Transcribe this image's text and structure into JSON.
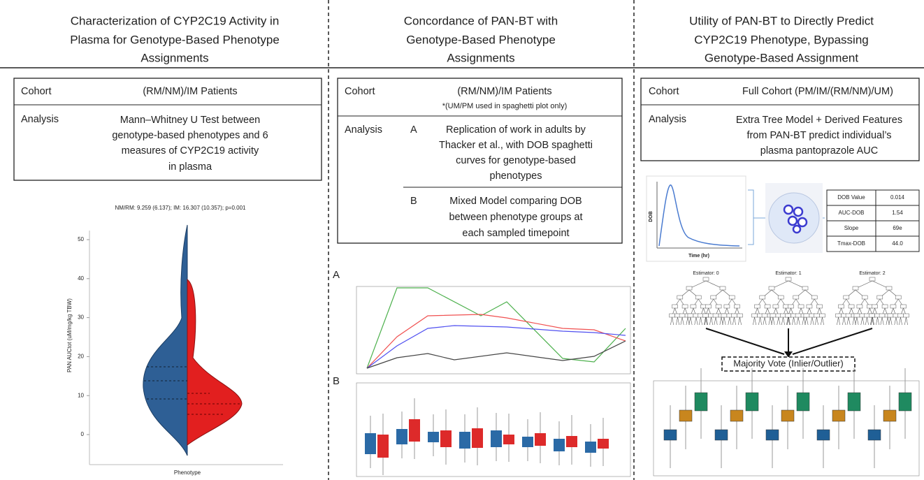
{
  "panel1": {
    "title": [
      "Characterization of CYP2C19 Activity in",
      "Plasma for Genotype-Based Phenotype",
      "Assignments"
    ],
    "cohort_label": "Cohort",
    "cohort": "(RM/NM)/IM Patients",
    "analysis_label": "Analysis",
    "analysis": [
      "Mann–Whitney U Test between",
      "genotype-based phenotypes and 6",
      "measures of CYP2C19 activity",
      "in plasma"
    ],
    "violin": {
      "stat": "NM/RM: 9.259 (6.137); IM: 16.307 (10.357); p=0.001",
      "ylabel": "PAN AUCtot (uM/mg/kg TBW)",
      "xlabel": "Phenotype",
      "yticks": [
        0,
        10,
        20,
        30,
        40,
        50
      ]
    }
  },
  "panel2": {
    "title": [
      "Concordance of PAN-BT with",
      "Genotype-Based Phenotype",
      "Assignments"
    ],
    "cohort_label": "Cohort",
    "cohort": "(RM/NM)/IM Patients",
    "cohort_note": "*(UM/PM used in spaghetti plot only)",
    "analysis_label": "Analysis",
    "a_label": "A",
    "a_text": [
      "Replication of work in adults by",
      "Thacker et al., with DOB spaghetti",
      "curves for genotype-based",
      "phenotypes"
    ],
    "b_label": "B",
    "b_text": [
      "Mixed Model comparing DOB",
      "between phenotype groups at",
      "each sampled timepoint"
    ],
    "plot_a_label": "A",
    "plot_b_label": "B"
  },
  "panel3": {
    "title": [
      "Utility of PAN-BT to Directly Predict",
      "CYP2C19 Phenotype, Bypassing",
      "Genotype-Based Assignment"
    ],
    "cohort_label": "Cohort",
    "cohort": "Full Cohort (PM/IM/(RM/NM)/UM)",
    "analysis_label": "Analysis",
    "analysis": [
      "Extra Tree Model + Derived Features",
      "from PAN-BT predict individual’s",
      "plasma pantoprazole AUC"
    ],
    "curve_xlabel": "Time (hr)",
    "curve_ylabel": "DOB",
    "features": [
      [
        "DOB Value",
        "0.014"
      ],
      [
        "AUC-DOB",
        "1.54"
      ],
      [
        "Slope",
        "69e"
      ],
      [
        "Tmax-DOB",
        "44.0"
      ]
    ],
    "estimators": [
      "Estimator: 0",
      "Estimator: 1",
      "Estimator: 2"
    ],
    "vote": "Majority Vote (Inlier/Outlier)"
  }
}
